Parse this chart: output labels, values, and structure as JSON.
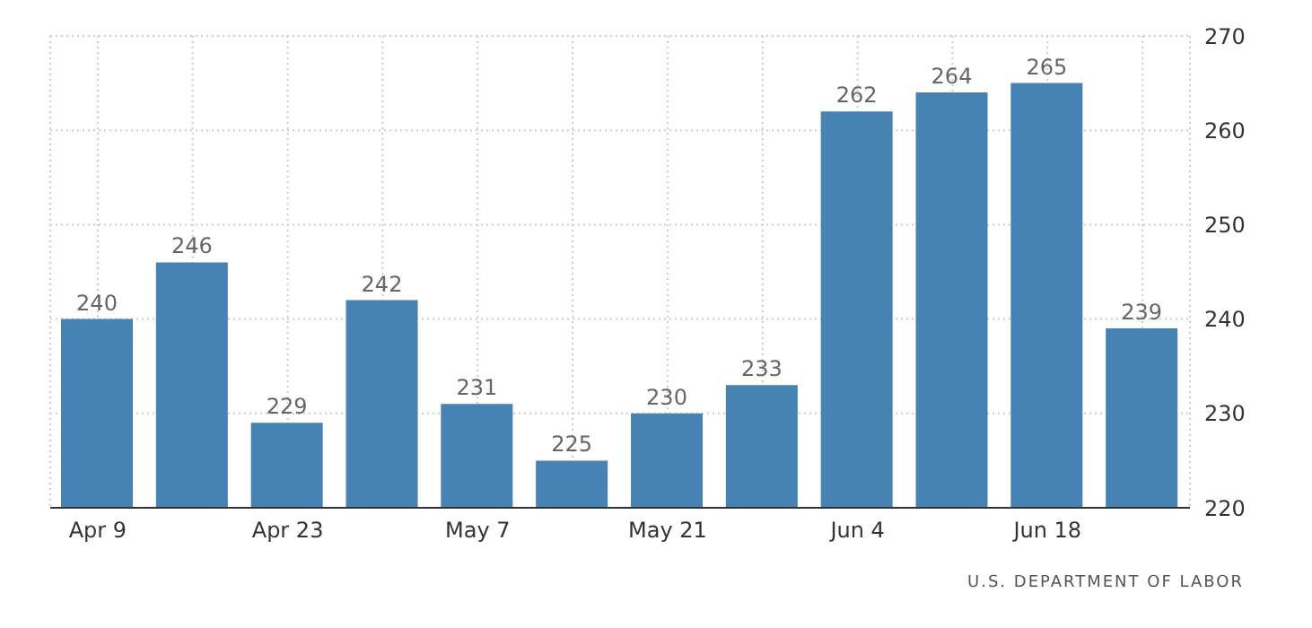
{
  "chart_data": {
    "type": "bar",
    "categories": [
      "Apr 9",
      null,
      "Apr 23",
      null,
      "May 7",
      null,
      "May 21",
      null,
      "Jun 4",
      null,
      "Jun 18",
      null
    ],
    "values": [
      240,
      246,
      229,
      242,
      231,
      225,
      230,
      233,
      262,
      264,
      265,
      239
    ],
    "color": "#4682b4",
    "ylim": [
      220,
      270
    ],
    "yticks": [
      220,
      230,
      240,
      250,
      260,
      270
    ],
    "grid": true,
    "data_labels": true,
    "annotations": [
      "U.S. DEPARTMENT OF LABOR"
    ]
  }
}
